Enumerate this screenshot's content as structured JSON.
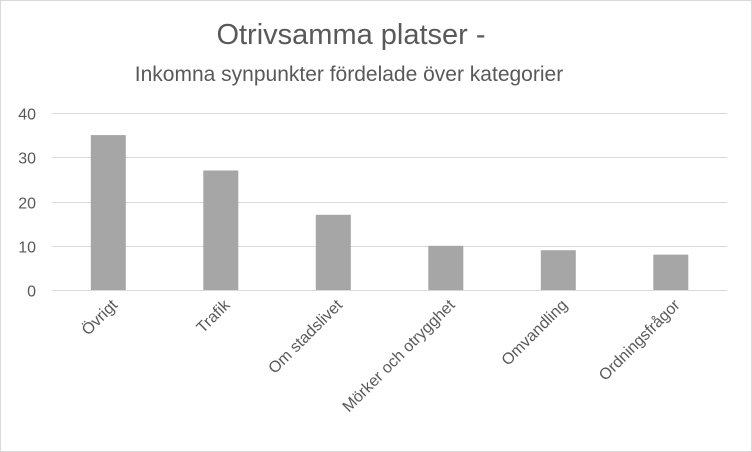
{
  "chart": {
    "title": "Otrivsamma platser -",
    "subtitle": "Inkomna synpunkter fördelade över kategorier"
  },
  "colors": {
    "bar": "#a6a6a6",
    "grid": "#d9d9d9",
    "text": "#595959",
    "border": "#d9d9d9"
  },
  "chart_data": {
    "type": "bar",
    "title": "Otrivsamma platser -",
    "subtitle": "Inkomna synpunkter fördelade över kategorier",
    "categories": [
      "Övrigt",
      "Trafik",
      "Om stadslivet",
      "Mörker och otrygghet",
      "Omvandling",
      "Ordningsfrågor"
    ],
    "values": [
      35,
      27,
      17,
      10,
      9,
      8
    ],
    "xlabel": "",
    "ylabel": "",
    "ylim": [
      0,
      40
    ],
    "yticks": [
      0,
      10,
      20,
      30,
      40
    ],
    "grid": true,
    "legend": "none"
  }
}
